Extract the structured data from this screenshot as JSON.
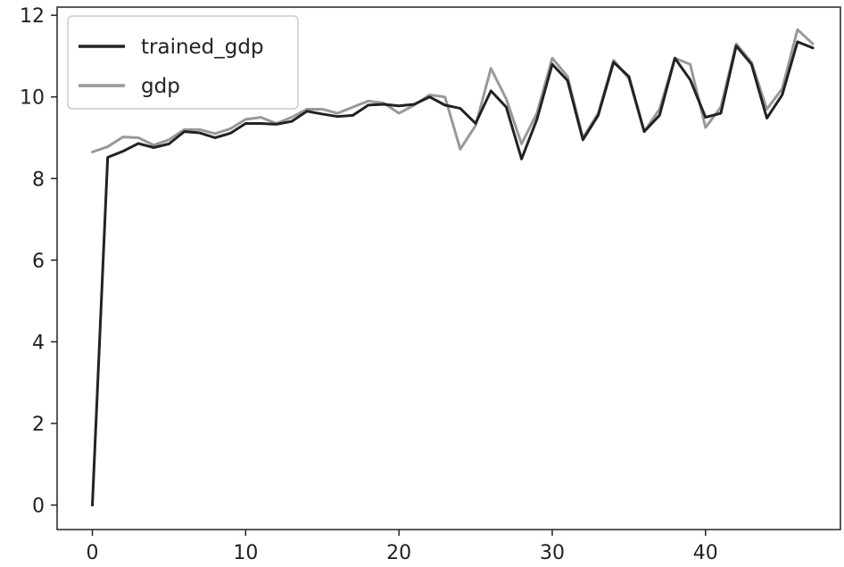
{
  "chart_data": {
    "type": "line",
    "title": "",
    "xlabel": "",
    "ylabel": "",
    "xlim": [
      -2.3,
      48.8
    ],
    "ylim": [
      -0.6,
      12.2
    ],
    "x_ticks": [
      0,
      10,
      20,
      30,
      40
    ],
    "y_ticks": [
      0,
      2,
      4,
      6,
      8,
      10,
      12
    ],
    "x_tick_labels": [
      "0",
      "10",
      "20",
      "30",
      "40"
    ],
    "y_tick_labels": [
      "0",
      "2",
      "4",
      "6",
      "8",
      "10",
      "12"
    ],
    "grid": false,
    "legend": {
      "position": "top-left",
      "entries": [
        "trained_gdp",
        "gdp"
      ]
    },
    "series": [
      {
        "name": "trained_gdp",
        "color": "#222222",
        "x": [
          0,
          1,
          2,
          3,
          4,
          5,
          6,
          7,
          8,
          9,
          10,
          11,
          12,
          13,
          14,
          15,
          16,
          17,
          18,
          19,
          20,
          21,
          22,
          23,
          24,
          25,
          26,
          27,
          28,
          29,
          30,
          31,
          32,
          33,
          34,
          35,
          36,
          37,
          38,
          39,
          40,
          41,
          42,
          43,
          44,
          45,
          46,
          47
        ],
        "values": [
          0.0,
          8.52,
          8.67,
          8.86,
          8.76,
          8.85,
          9.15,
          9.12,
          9.0,
          9.11,
          9.35,
          9.35,
          9.33,
          9.4,
          9.65,
          9.58,
          9.52,
          9.55,
          9.8,
          9.82,
          9.78,
          9.82,
          10.0,
          9.8,
          9.72,
          9.35,
          10.15,
          9.75,
          8.48,
          9.45,
          10.8,
          10.4,
          8.95,
          9.55,
          10.85,
          10.5,
          9.15,
          9.55,
          10.95,
          10.42,
          9.5,
          9.6,
          11.25,
          10.8,
          9.48,
          10.05,
          11.35,
          11.2
        ]
      },
      {
        "name": "gdp",
        "color": "#999999",
        "x": [
          0,
          1,
          2,
          3,
          4,
          5,
          6,
          7,
          8,
          9,
          10,
          11,
          12,
          13,
          14,
          15,
          16,
          17,
          18,
          19,
          20,
          21,
          22,
          23,
          24,
          25,
          26,
          27,
          28,
          29,
          30,
          31,
          32,
          33,
          34,
          35,
          36,
          37,
          38,
          39,
          40,
          41,
          42,
          43,
          44,
          45,
          46,
          47
        ],
        "values": [
          8.65,
          8.78,
          9.02,
          9.0,
          8.82,
          8.95,
          9.2,
          9.2,
          9.1,
          9.22,
          9.45,
          9.5,
          9.35,
          9.5,
          9.7,
          9.7,
          9.6,
          9.75,
          9.9,
          9.85,
          9.6,
          9.8,
          10.05,
          10.0,
          8.72,
          9.3,
          10.7,
          9.95,
          8.85,
          9.6,
          10.95,
          10.5,
          9.0,
          9.6,
          10.9,
          10.45,
          9.15,
          9.7,
          10.95,
          10.8,
          9.25,
          9.75,
          11.3,
          10.85,
          9.7,
          10.2,
          11.65,
          11.3
        ]
      }
    ]
  }
}
